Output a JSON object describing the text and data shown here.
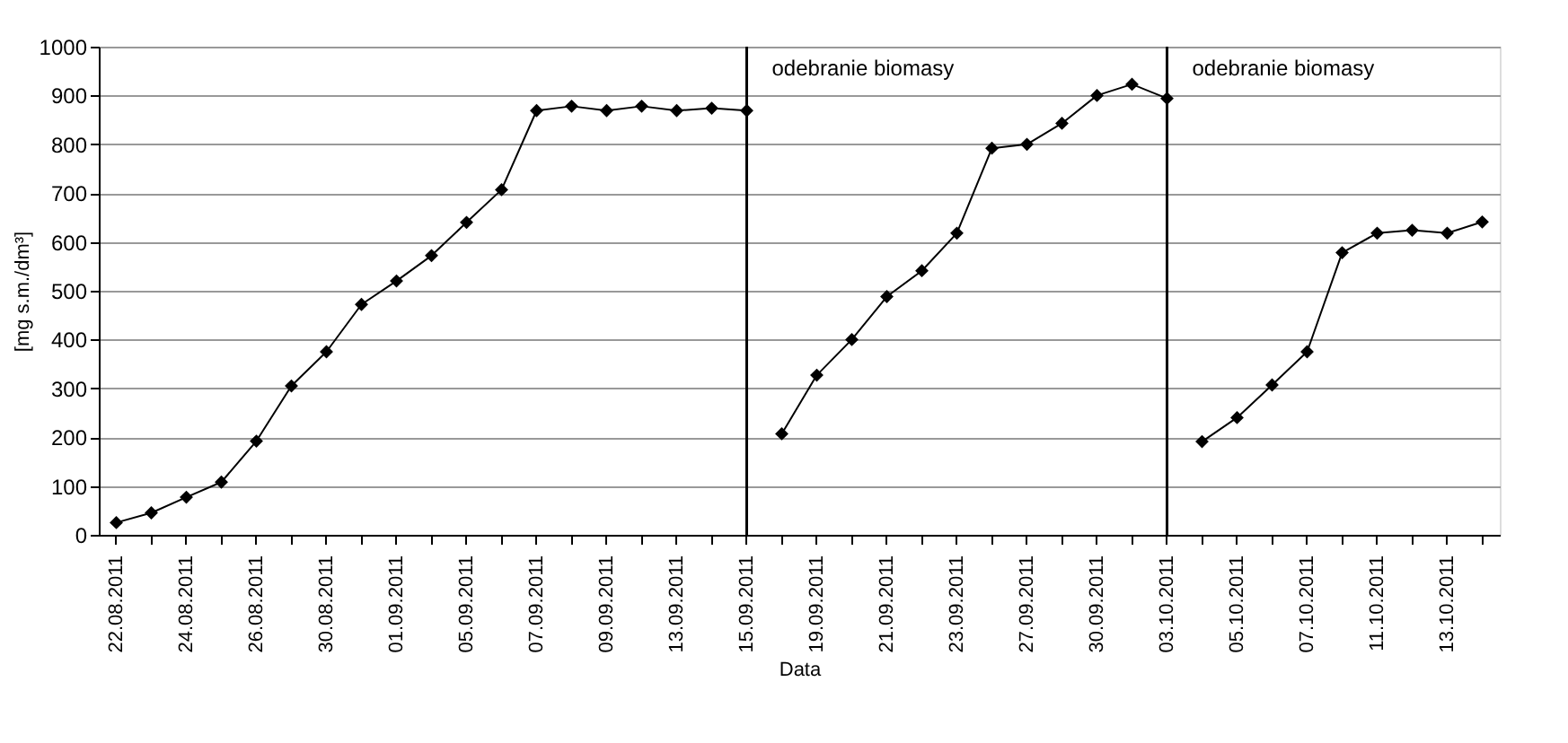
{
  "chart_data": {
    "type": "line",
    "xlabel": "Data",
    "ylabel": "[mg s.m./dm³]",
    "categories": [
      "22.08.2011",
      null,
      "24.08.2011",
      null,
      "26.08.2011",
      null,
      "30.08.2011",
      null,
      "01.09.2011",
      null,
      "05.09.2011",
      null,
      "07.09.2011",
      null,
      "09.09.2011",
      null,
      "13.09.2011",
      null,
      "15.09.2011",
      null,
      "19.09.2011",
      null,
      "21.09.2011",
      null,
      "23.09.2011",
      null,
      "27.09.2011",
      null,
      "30.09.2011",
      null,
      "03.10.2011",
      null,
      "05.10.2011",
      null,
      "07.10.2011",
      null,
      "11.10.2011",
      null,
      "13.10.2011",
      null
    ],
    "series": [
      {
        "color": "#000000",
        "values": [
          25,
          45,
          77,
          108,
          192,
          305,
          375,
          472,
          520,
          572,
          640,
          707,
          869,
          878,
          869,
          878,
          869,
          874,
          869,
          null,
          null,
          null,
          null,
          null,
          null,
          null,
          null,
          null,
          null,
          null,
          null,
          null,
          null,
          null,
          null,
          null,
          null,
          null,
          null,
          null
        ]
      },
      {
        "color": "#000000",
        "values": [
          null,
          null,
          null,
          null,
          null,
          null,
          null,
          null,
          null,
          null,
          null,
          null,
          null,
          null,
          null,
          null,
          null,
          null,
          null,
          207,
          327,
          400,
          488,
          541,
          618,
          792,
          800,
          843,
          900,
          923,
          894,
          null,
          null,
          null,
          null,
          null,
          null,
          null,
          null,
          null
        ]
      },
      {
        "color": "#000000",
        "values": [
          null,
          null,
          null,
          null,
          null,
          null,
          null,
          null,
          null,
          null,
          null,
          null,
          null,
          null,
          null,
          null,
          null,
          null,
          null,
          null,
          null,
          null,
          null,
          null,
          null,
          null,
          null,
          null,
          null,
          null,
          null,
          191,
          240,
          307,
          375,
          578,
          618,
          624,
          618,
          641
        ]
      }
    ],
    "ylim": [
      0,
      1000
    ],
    "yticks": [
      0,
      100,
      200,
      300,
      400,
      500,
      600,
      700,
      800,
      900,
      1000
    ],
    "grid": "y",
    "marker": "diamond",
    "line_style": "solid",
    "ref_lines": [
      {
        "axis": "x",
        "value": "15.09.2011",
        "label": "odebranie biomasy"
      },
      {
        "axis": "x",
        "value": "03.10.2011",
        "label": "odebranie biomasy"
      }
    ]
  }
}
